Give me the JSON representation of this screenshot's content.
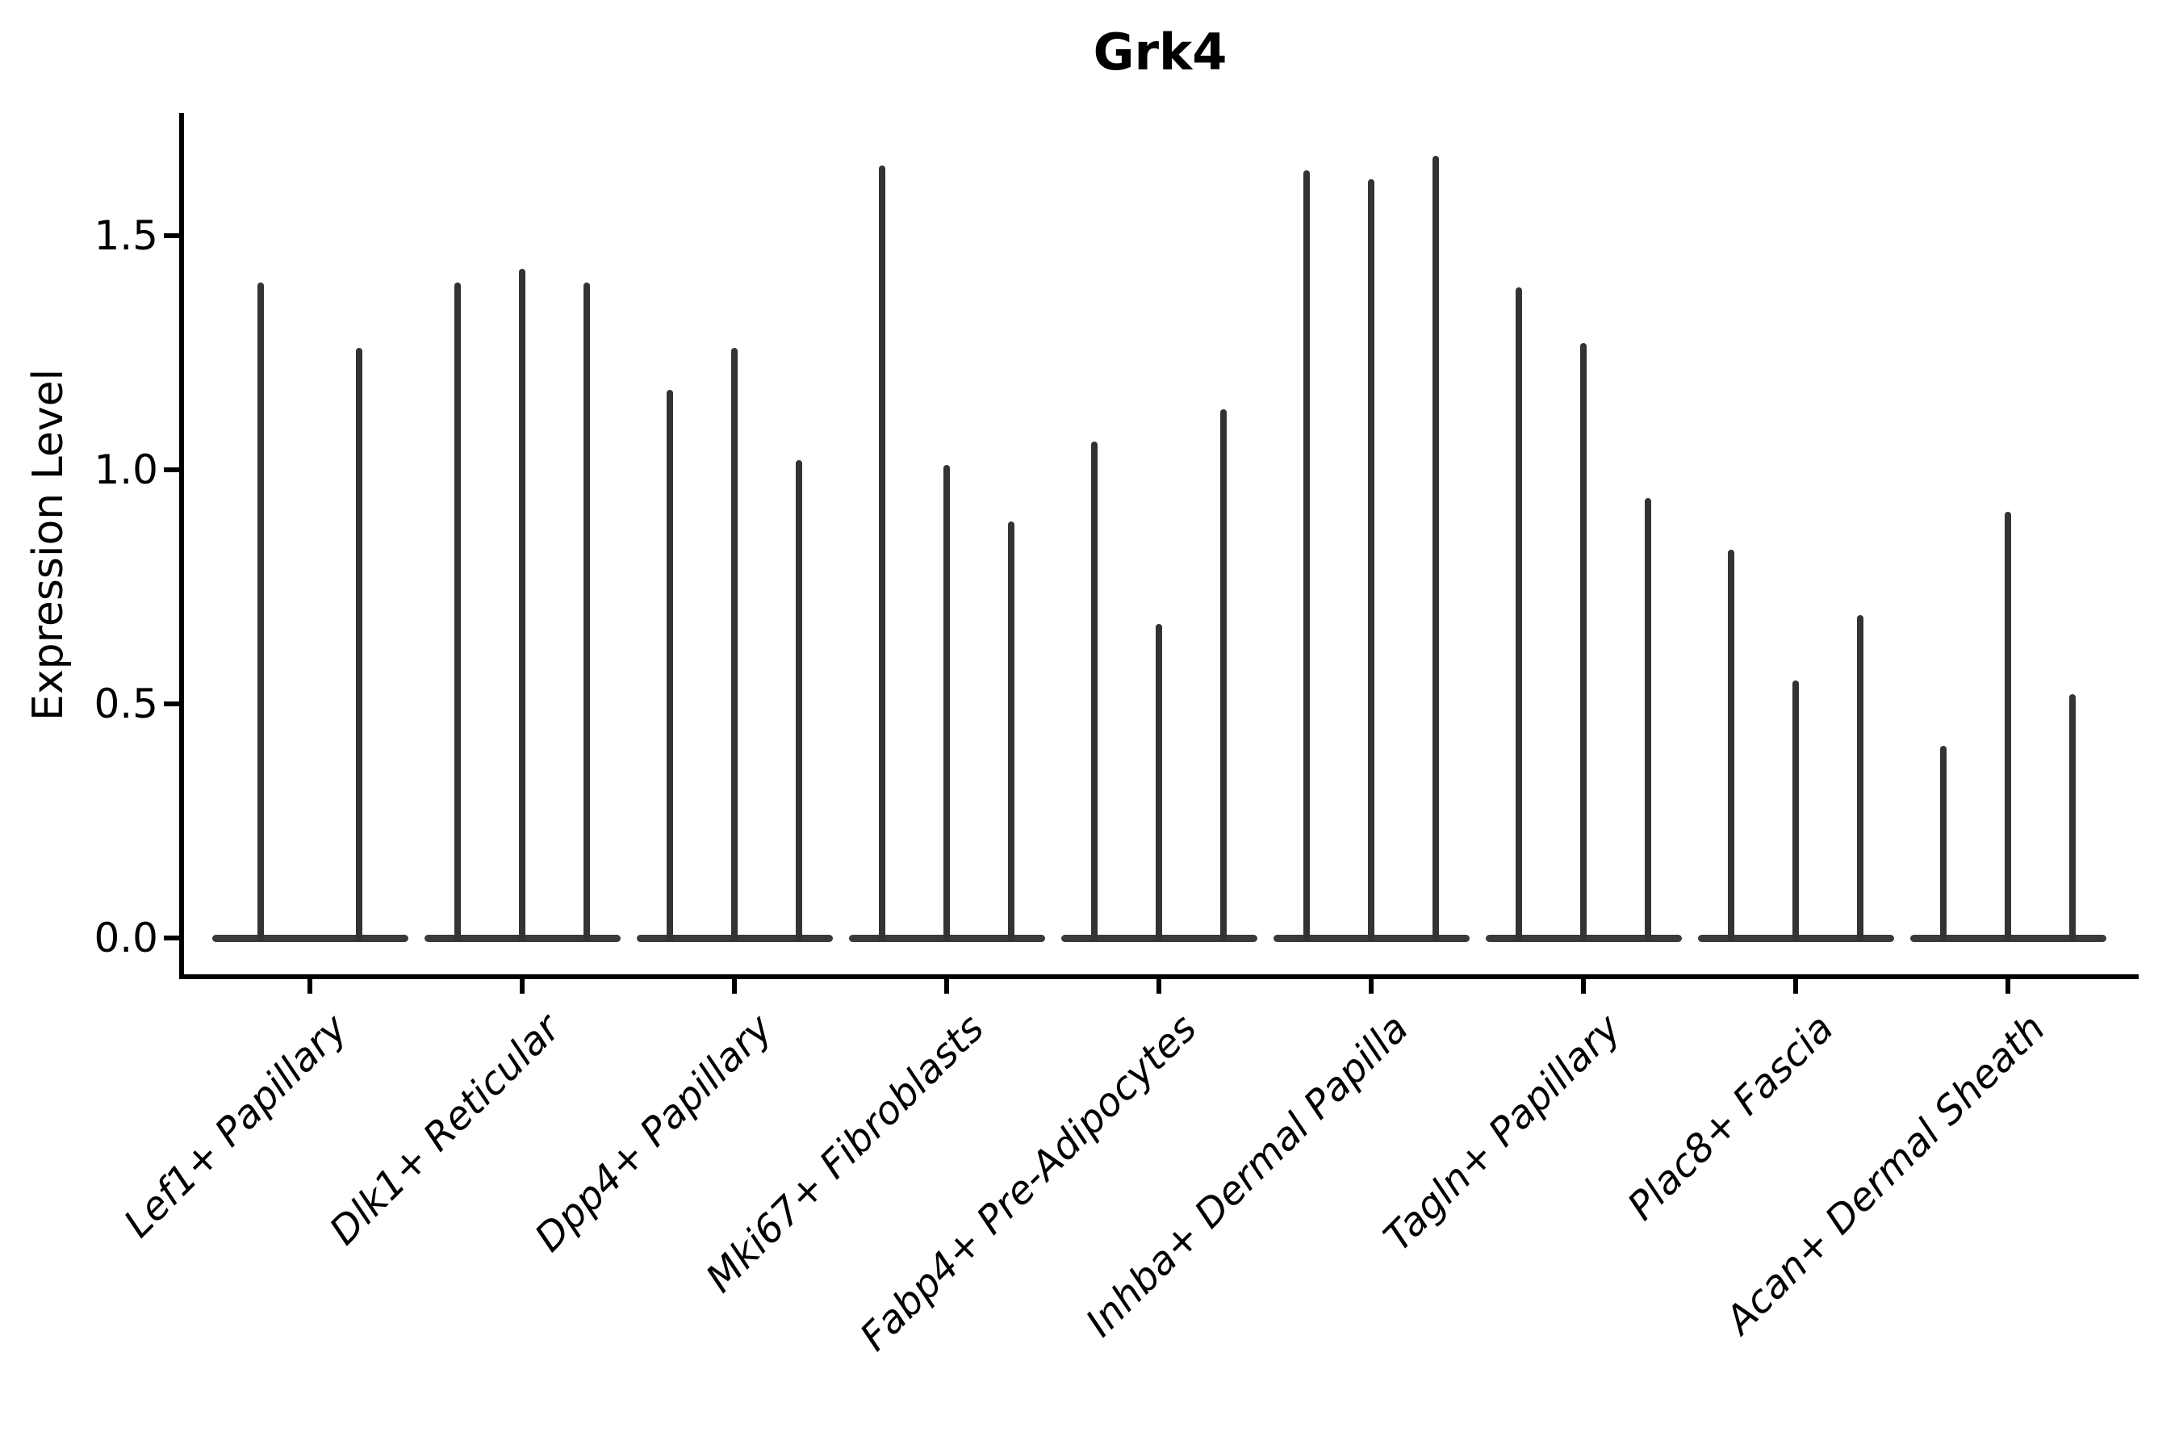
{
  "title": "Grk4",
  "y_axis": {
    "label": "Expression Level",
    "tick_labels": [
      "0.0",
      "0.5",
      "1.0",
      "1.5"
    ]
  },
  "colors": {
    "background": "#ffffff",
    "axis": "#000000",
    "text": "#000000",
    "violin": "#333333",
    "violin_base": "#3a3a3a"
  },
  "chart_data": {
    "type": "violin",
    "title": "Grk4",
    "xlabel": "",
    "ylabel": "Expression Level",
    "ylim": [
      0,
      1.76
    ],
    "yticks": [
      0,
      0.5,
      1.0,
      1.5
    ],
    "grid": false,
    "legend": "none",
    "x_tick_rotation": 45,
    "x_tick_style": "italic",
    "categories": [
      "Lef1+ Papillary",
      "Dlk1+ Reticular",
      "Dpp4+ Papillary",
      "Mki67+ Fibroblasts",
      "Fabp4+ Pre-Adipocytes",
      "Inhba+ Dermal Papilla",
      "Tagln+ Papillary",
      "Plac8+ Fascia",
      "Acan+ Dermal Sheath"
    ],
    "series": [
      {
        "category": "Lef1+ Papillary",
        "violin_peaks": [
          1.4,
          1.26
        ]
      },
      {
        "category": "Dlk1+ Reticular",
        "violin_peaks": [
          1.4,
          1.43,
          1.4
        ]
      },
      {
        "category": "Dpp4+ Papillary",
        "violin_peaks": [
          1.17,
          1.26,
          1.02
        ]
      },
      {
        "category": "Mki67+ Fibroblasts",
        "violin_peaks": [
          1.65,
          1.01,
          0.89
        ]
      },
      {
        "category": "Fabp4+ Pre-Adipocytes",
        "violin_peaks": [
          1.06,
          0.67,
          1.13
        ]
      },
      {
        "category": "Inhba+ Dermal Papilla",
        "violin_peaks": [
          1.64,
          1.62,
          1.67
        ]
      },
      {
        "category": "Tagln+ Papillary",
        "violin_peaks": [
          1.39,
          1.27,
          0.94
        ]
      },
      {
        "category": "Plac8+ Fascia",
        "violin_peaks": [
          0.83,
          0.55,
          0.69
        ]
      },
      {
        "category": "Acan+ Dermal Sheath",
        "violin_peaks": [
          0.41,
          0.91,
          0.52
        ]
      }
    ],
    "description": "Violin plot of Grk4 expression level per fibroblast cluster; each category contains 2-3 extremely thin spike-like violins rising from a flat base at expression 0."
  }
}
